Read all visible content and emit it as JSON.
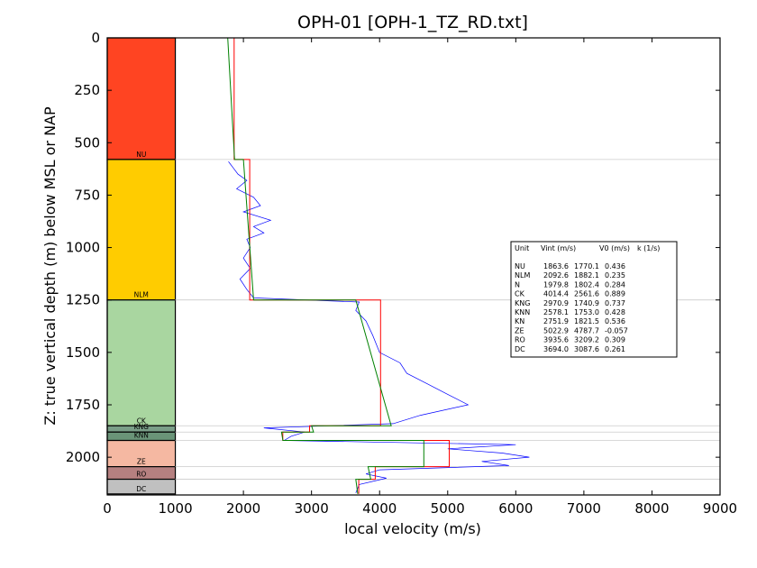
{
  "chart_data": {
    "type": "line",
    "title": "OPH-01 [OPH-1_TZ_RD.txt]",
    "xlabel": "local velocity (m/s)",
    "ylabel": "Z: true vertical depth (m) below MSL or NAP",
    "xlim": [
      0,
      9000
    ],
    "ylim": [
      2180,
      0
    ],
    "y_inverted": true,
    "x_ticks": [
      "0",
      "1000",
      "2000",
      "3000",
      "4000",
      "5000",
      "6000",
      "7000",
      "8000",
      "9000"
    ],
    "y_ticks": [
      "0",
      "250",
      "500",
      "750",
      "1000",
      "1250",
      "1500",
      "1750",
      "2000"
    ],
    "grid": false,
    "units": [
      {
        "name": "NU",
        "top": 0,
        "base": 580,
        "color": "#ff4422"
      },
      {
        "name": "NLM",
        "top": 580,
        "base": 1250,
        "color": "#ffcc00"
      },
      {
        "name": "CK",
        "top": 1250,
        "base": 1850,
        "color": "#a9d6a0"
      },
      {
        "name": "KNG",
        "top": 1850,
        "base": 1880,
        "color": "#7a9e88"
      },
      {
        "name": "KNN",
        "top": 1880,
        "base": 1920,
        "color": "#6a9478"
      },
      {
        "name": "ZE",
        "top": 1920,
        "base": 2045,
        "color": "#f5b8a2"
      },
      {
        "name": "RO",
        "top": 2045,
        "base": 2105,
        "color": "#b58080"
      },
      {
        "name": "DC",
        "top": 2105,
        "base": 2175,
        "color": "#c0c0c0"
      }
    ],
    "interval_velocity": {
      "color": "#ff0000",
      "segments": [
        {
          "top": 0,
          "base": 580,
          "value": 1863.6
        },
        {
          "top": 580,
          "base": 1250,
          "value": 2092.6
        },
        {
          "top": 1250,
          "base": 1850,
          "value": 4014.4
        },
        {
          "top": 1850,
          "base": 1880,
          "value": 2970.9
        },
        {
          "top": 1880,
          "base": 1920,
          "value": 2578.1
        },
        {
          "top": 1920,
          "base": 2045,
          "value": 5022.9
        },
        {
          "top": 2045,
          "base": 2105,
          "value": 3935.6
        },
        {
          "top": 2105,
          "base": 2175,
          "value": 3694.0
        }
      ]
    },
    "linear_trend": {
      "color": "#008000",
      "segments": [
        {
          "top": 0,
          "base": 580,
          "v_top": 1770,
          "v_base": 1870
        },
        {
          "top": 580,
          "base": 1250,
          "v_top": 2000,
          "v_base": 2150
        },
        {
          "top": 1250,
          "base": 1850,
          "v_top": 3650,
          "v_base": 4170
        },
        {
          "top": 1850,
          "base": 1880,
          "v_top": 3000,
          "v_base": 3030
        },
        {
          "top": 1880,
          "base": 1920,
          "v_top": 2560,
          "v_base": 2580
        },
        {
          "top": 1920,
          "base": 2045,
          "v_top": 4650,
          "v_base": 4650
        },
        {
          "top": 2045,
          "base": 2105,
          "v_top": 3830,
          "v_base": 3870
        },
        {
          "top": 2105,
          "base": 2175,
          "v_top": 3650,
          "v_base": 3680
        }
      ]
    },
    "log_velocity": {
      "color": "#0000ff",
      "points": [
        [
          1780,
          590
        ],
        [
          1850,
          620
        ],
        [
          1920,
          650
        ],
        [
          2050,
          680
        ],
        [
          1900,
          720
        ],
        [
          2150,
          760
        ],
        [
          2250,
          800
        ],
        [
          2000,
          830
        ],
        [
          2400,
          870
        ],
        [
          2150,
          900
        ],
        [
          2300,
          930
        ],
        [
          2050,
          960
        ],
        [
          2100,
          1000
        ],
        [
          2000,
          1050
        ],
        [
          2100,
          1100
        ],
        [
          1950,
          1150
        ],
        [
          2050,
          1200
        ],
        [
          2150,
          1240
        ],
        [
          3700,
          1260
        ],
        [
          3650,
          1300
        ],
        [
          3800,
          1350
        ],
        [
          3900,
          1420
        ],
        [
          4000,
          1500
        ],
        [
          4300,
          1550
        ],
        [
          4400,
          1600
        ],
        [
          4700,
          1650
        ],
        [
          5000,
          1700
        ],
        [
          5300,
          1750
        ],
        [
          4600,
          1800
        ],
        [
          4200,
          1840
        ],
        [
          2300,
          1860
        ],
        [
          2900,
          1880
        ],
        [
          2700,
          1900
        ],
        [
          2600,
          1920
        ],
        [
          6000,
          1940
        ],
        [
          5000,
          1960
        ],
        [
          5800,
          1980
        ],
        [
          6200,
          2000
        ],
        [
          5500,
          2020
        ],
        [
          5900,
          2040
        ],
        [
          4000,
          2060
        ],
        [
          3800,
          2080
        ],
        [
          4100,
          2100
        ],
        [
          3700,
          2130
        ],
        [
          3650,
          2170
        ]
      ]
    },
    "table": {
      "headers": [
        "Unit",
        "Vint (m/s)",
        "V0 (m/s)",
        "k (1/s)"
      ],
      "rows": [
        [
          "NU",
          "1863.6",
          "1770.1",
          "0.436"
        ],
        [
          "NLM",
          "2092.6",
          "1882.1",
          "0.235"
        ],
        [
          "N",
          "1979.8",
          "1802.4",
          "0.284"
        ],
        [
          "CK",
          "4014.4",
          "2561.6",
          "0.889"
        ],
        [
          "KNG",
          "2970.9",
          "1740.9",
          "0.737"
        ],
        [
          "KNN",
          "2578.1",
          "1753.0",
          "0.428"
        ],
        [
          "KN",
          "2751.9",
          "1821.5",
          "0.536"
        ],
        [
          "ZE",
          "5022.9",
          "4787.7",
          "-0.057"
        ],
        [
          "RO",
          "3935.6",
          "3209.2",
          "0.309"
        ],
        [
          "DC",
          "3694.0",
          "3087.6",
          "0.261"
        ]
      ]
    }
  }
}
